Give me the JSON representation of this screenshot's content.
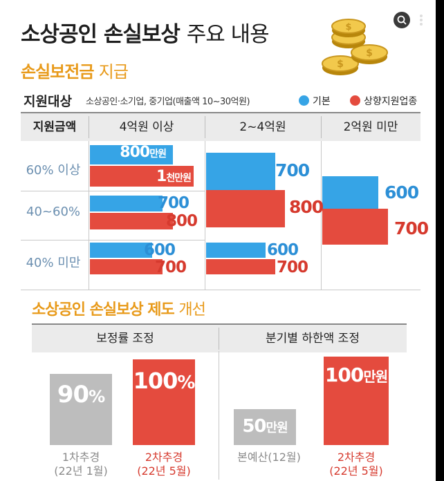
{
  "title_bold": "소상공인 손실보상",
  "title_rest": "주요 내용",
  "section1_bold": "손실보전금",
  "section1_rest": "지급",
  "target_label": "지원대상",
  "target_desc": "소상공인·소기업, 중기업(매출액 10~30억원)",
  "legend": [
    {
      "label": "기본",
      "color": "#36a4e6"
    },
    {
      "label": "상향지원업종",
      "color": "#e44b3e"
    }
  ],
  "table_header": {
    "col0": "지원금액",
    "col1": "4억원 이상",
    "col2": "2~4억원",
    "col3": "2억원 미만"
  },
  "row_labels": [
    "60% 이상",
    "40~60%",
    "40% 미만"
  ],
  "chart_data": {
    "type": "bar",
    "title": "손실보전금 지급",
    "unit": "만원",
    "row_categories": [
      "60% 이상",
      "40~60%",
      "40% 미만"
    ],
    "col_categories": [
      "4억원 이상",
      "2~4억원",
      "2억원 미만"
    ],
    "series": [
      {
        "name": "기본",
        "values": [
          [
            800,
            700,
            600
          ],
          [
            700,
            700,
            600
          ],
          [
            600,
            600,
            600
          ]
        ]
      },
      {
        "name": "상향지원업종",
        "values": [
          [
            1000,
            800,
            700
          ],
          [
            800,
            800,
            700
          ],
          [
            700,
            700,
            700
          ]
        ]
      }
    ],
    "labels": {
      "r0c0_basic": "800",
      "r0c0_basic_unit": "만원",
      "r0c0_up": "1",
      "r0c0_up_unit": "천만원",
      "merged_2to4_basic": "700",
      "merged_2to4_up": "800",
      "merged_under2_basic": "600",
      "merged_under2_up": "700",
      "r1c0_basic": "700",
      "r1c0_up": "800",
      "r2c0_basic": "600",
      "r2c0_up": "700",
      "r2c1_basic": "600",
      "r2c1_up": "700"
    }
  },
  "section2_bold": "소상공인 손실보상 제도",
  "section2_rest": "개선",
  "section2_headers": [
    "보정률 조정",
    "분기별 하한액  조정"
  ],
  "bottom": {
    "rate_before": {
      "value": "90",
      "unit": "%",
      "caption1": "1차추경",
      "caption2": "(22년 1월)",
      "amount": 90
    },
    "rate_after": {
      "value": "100",
      "unit": "%",
      "caption1": "2차추경",
      "caption2": "(22년 5월)",
      "amount": 100
    },
    "floor_before": {
      "value": "50",
      "unit": "만원",
      "caption1": "본예산(12월)",
      "amount": 50
    },
    "floor_after": {
      "value": "100",
      "unit": "만원",
      "caption1": "2차추경",
      "caption2": "(22년 5월)",
      "amount": 100
    }
  },
  "colors": {
    "blue": "#36a4e6",
    "red": "#e44b3e",
    "gray": "#bdbdbd",
    "orange": "#e89a1a",
    "gold": "#e8b23a"
  },
  "icons": [
    "lens-icon",
    "more-vert-icon",
    "coins-icon"
  ]
}
